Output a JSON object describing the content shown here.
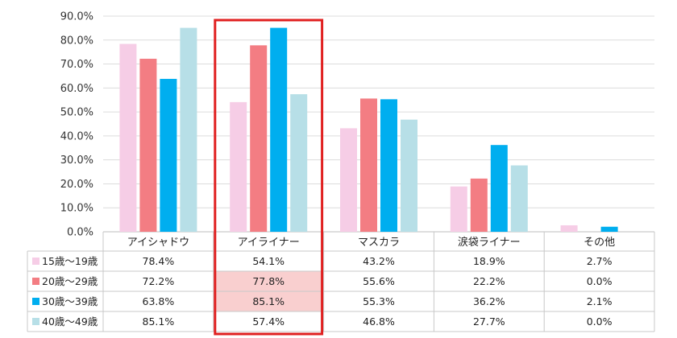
{
  "chart_data": {
    "type": "bar",
    "categories": [
      "アイシャドウ",
      "アイライナー",
      "マスカラ",
      "涙袋ライナー",
      "その他"
    ],
    "series": [
      {
        "name": "15歳～19歳",
        "color": "#f6cde6",
        "values": [
          78.4,
          54.1,
          43.2,
          18.9,
          2.7
        ],
        "labels": [
          "78.4%",
          "54.1%",
          "43.2%",
          "18.9%",
          "2.7%"
        ]
      },
      {
        "name": "20歳～29歳",
        "color": "#f37d83",
        "values": [
          72.2,
          77.8,
          55.6,
          22.2,
          0.0
        ],
        "labels": [
          "72.2%",
          "77.8%",
          "55.6%",
          "22.2%",
          "0.0%"
        ]
      },
      {
        "name": "30歳～39歳",
        "color": "#00aeef",
        "values": [
          63.8,
          85.1,
          55.3,
          36.2,
          2.1
        ],
        "labels": [
          "63.8%",
          "85.1%",
          "55.3%",
          "36.2%",
          "2.1%"
        ]
      },
      {
        "name": "40歳～49歳",
        "color": "#b7dfe7",
        "values": [
          85.1,
          57.4,
          46.8,
          27.7,
          0.0
        ],
        "labels": [
          "85.1%",
          "57.4%",
          "46.8%",
          "27.7%",
          "0.0%"
        ]
      }
    ],
    "yticks": [
      "0.0%",
      "10.0%",
      "20.0%",
      "30.0%",
      "40.0%",
      "50.0%",
      "60.0%",
      "70.0%",
      "80.0%",
      "90.0%"
    ],
    "ylim": [
      0,
      90
    ],
    "grid": true,
    "highlight": {
      "category": "アイライナー",
      "outline_color": "#e02020",
      "highlight_fill": "#f9cfcf",
      "highlighted_series": [
        "20歳～29歳",
        "30歳～39歳"
      ]
    }
  }
}
